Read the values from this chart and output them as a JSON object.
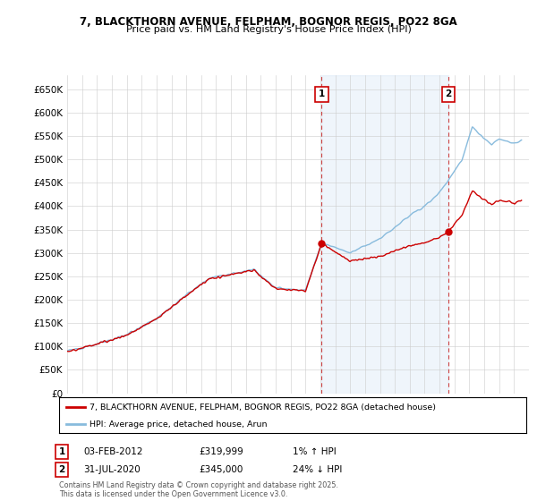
{
  "title_line1": "7, BLACKTHORN AVENUE, FELPHAM, BOGNOR REGIS, PO22 8GA",
  "title_line2": "Price paid vs. HM Land Registry's House Price Index (HPI)",
  "legend_line1": "7, BLACKTHORN AVENUE, FELPHAM, BOGNOR REGIS, PO22 8GA (detached house)",
  "legend_line2": "HPI: Average price, detached house, Arun",
  "line1_color": "#cc0000",
  "line2_color": "#88bbdd",
  "shade_color": "#ddeeff",
  "annotation1_label": "1",
  "annotation1_date": "03-FEB-2012",
  "annotation1_price": "£319,999",
  "annotation1_hpi": "1% ↑ HPI",
  "annotation2_label": "2",
  "annotation2_date": "31-JUL-2020",
  "annotation2_price": "£345,000",
  "annotation2_hpi": "24% ↓ HPI",
  "footer": "Contains HM Land Registry data © Crown copyright and database right 2025.\nThis data is licensed under the Open Government Licence v3.0.",
  "background_color": "#ffffff",
  "grid_color": "#cccccc",
  "sale1_x": 2012.09,
  "sale1_y": 319999,
  "sale2_x": 2020.58,
  "sale2_y": 345000,
  "ylim": [
    0,
    680000
  ],
  "yticks": [
    0,
    50000,
    100000,
    150000,
    200000,
    250000,
    300000,
    350000,
    400000,
    450000,
    500000,
    550000,
    600000,
    650000
  ],
  "ytick_labels": [
    "£0",
    "£50K",
    "£100K",
    "£150K",
    "£200K",
    "£250K",
    "£300K",
    "£350K",
    "£400K",
    "£450K",
    "£500K",
    "£550K",
    "£600K",
    "£650K"
  ],
  "xmin": 1995,
  "xmax": 2026
}
